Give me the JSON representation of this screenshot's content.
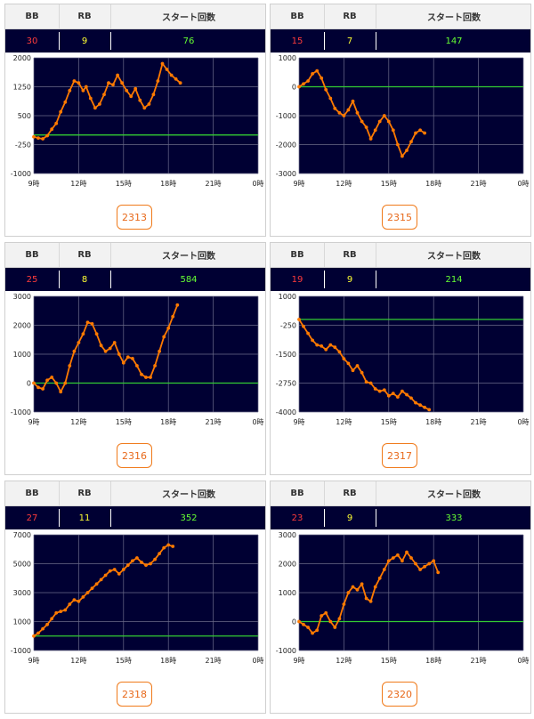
{
  "headers": {
    "bb": "BB",
    "rb": "RB",
    "start": "スタート回数"
  },
  "colors": {
    "bb": "#ff3b3b",
    "rb": "#ffff33",
    "start": "#66ff33",
    "line": "#ff7a00",
    "zero": "#33cc33",
    "plot_bg": "#000033",
    "button": "#f07a1a"
  },
  "machines": [
    {
      "id": "2313",
      "bb": "30",
      "rb": "9",
      "start": "76"
    },
    {
      "id": "2315",
      "bb": "15",
      "rb": "7",
      "start": "147"
    },
    {
      "id": "2316",
      "bb": "25",
      "rb": "8",
      "start": "584"
    },
    {
      "id": "2317",
      "bb": "19",
      "rb": "9",
      "start": "214"
    },
    {
      "id": "2318",
      "bb": "27",
      "rb": "11",
      "start": "352"
    },
    {
      "id": "2320",
      "bb": "23",
      "rb": "9",
      "start": "333"
    }
  ],
  "chart_data": [
    {
      "type": "line",
      "xticks": [
        "9時",
        "12時",
        "15時",
        "18時",
        "21時",
        "0時"
      ],
      "xlim": [
        9,
        24
      ],
      "yticks": [
        "2000",
        "1250",
        "500",
        "-250",
        "-1000"
      ],
      "ylim": [
        -1000,
        2000
      ],
      "baseline": 0,
      "grid": true,
      "points": [
        [
          9,
          -50
        ],
        [
          9.3,
          -80
        ],
        [
          9.6,
          -100
        ],
        [
          9.9,
          -20
        ],
        [
          10.2,
          150
        ],
        [
          10.5,
          300
        ],
        [
          10.8,
          600
        ],
        [
          11.1,
          850
        ],
        [
          11.4,
          1150
        ],
        [
          11.7,
          1400
        ],
        [
          12.0,
          1350
        ],
        [
          12.3,
          1150
        ],
        [
          12.5,
          1250
        ],
        [
          12.8,
          950
        ],
        [
          13.1,
          700
        ],
        [
          13.4,
          800
        ],
        [
          13.7,
          1050
        ],
        [
          14.0,
          1350
        ],
        [
          14.3,
          1300
        ],
        [
          14.6,
          1550
        ],
        [
          14.9,
          1350
        ],
        [
          15.2,
          1150
        ],
        [
          15.5,
          1000
        ],
        [
          15.8,
          1200
        ],
        [
          16.1,
          900
        ],
        [
          16.4,
          700
        ],
        [
          16.7,
          800
        ],
        [
          17.0,
          1050
        ],
        [
          17.3,
          1400
        ],
        [
          17.6,
          1850
        ],
        [
          17.9,
          1700
        ],
        [
          18.2,
          1550
        ],
        [
          18.5,
          1450
        ],
        [
          18.8,
          1350
        ]
      ]
    },
    {
      "type": "line",
      "xticks": [
        "9時",
        "12時",
        "15時",
        "18時",
        "21時",
        "0時"
      ],
      "xlim": [
        9,
        24
      ],
      "yticks": [
        "1000",
        "0",
        "-1000",
        "-2000",
        "-3000"
      ],
      "ylim": [
        -3000,
        1000
      ],
      "baseline": 0,
      "grid": true,
      "points": [
        [
          9,
          0
        ],
        [
          9.3,
          100
        ],
        [
          9.6,
          200
        ],
        [
          9.9,
          450
        ],
        [
          10.2,
          550
        ],
        [
          10.5,
          300
        ],
        [
          10.8,
          -100
        ],
        [
          11.1,
          -400
        ],
        [
          11.4,
          -750
        ],
        [
          11.7,
          -900
        ],
        [
          12.0,
          -1000
        ],
        [
          12.3,
          -800
        ],
        [
          12.6,
          -500
        ],
        [
          12.9,
          -900
        ],
        [
          13.2,
          -1200
        ],
        [
          13.5,
          -1400
        ],
        [
          13.8,
          -1800
        ],
        [
          14.1,
          -1500
        ],
        [
          14.4,
          -1200
        ],
        [
          14.7,
          -1000
        ],
        [
          15.0,
          -1200
        ],
        [
          15.3,
          -1500
        ],
        [
          15.6,
          -2000
        ],
        [
          15.9,
          -2400
        ],
        [
          16.2,
          -2200
        ],
        [
          16.5,
          -1900
        ],
        [
          16.8,
          -1600
        ],
        [
          17.1,
          -1500
        ],
        [
          17.4,
          -1600
        ]
      ]
    },
    {
      "type": "line",
      "xticks": [
        "9時",
        "12時",
        "15時",
        "18時",
        "21時",
        "0時"
      ],
      "xlim": [
        9,
        24
      ],
      "yticks": [
        "3000",
        "2000",
        "1000",
        "0",
        "-1000"
      ],
      "ylim": [
        -1000,
        3000
      ],
      "baseline": 0,
      "grid": true,
      "points": [
        [
          9,
          0
        ],
        [
          9.3,
          -150
        ],
        [
          9.6,
          -200
        ],
        [
          9.9,
          100
        ],
        [
          10.2,
          200
        ],
        [
          10.5,
          0
        ],
        [
          10.8,
          -300
        ],
        [
          11.1,
          0
        ],
        [
          11.4,
          600
        ],
        [
          11.7,
          1100
        ],
        [
          12.0,
          1400
        ],
        [
          12.3,
          1700
        ],
        [
          12.6,
          2100
        ],
        [
          12.9,
          2050
        ],
        [
          13.2,
          1700
        ],
        [
          13.5,
          1300
        ],
        [
          13.8,
          1100
        ],
        [
          14.1,
          1200
        ],
        [
          14.4,
          1400
        ],
        [
          14.7,
          1000
        ],
        [
          15.0,
          700
        ],
        [
          15.3,
          900
        ],
        [
          15.6,
          850
        ],
        [
          15.9,
          600
        ],
        [
          16.2,
          300
        ],
        [
          16.5,
          200
        ],
        [
          16.8,
          200
        ],
        [
          17.1,
          600
        ],
        [
          17.4,
          1100
        ],
        [
          17.7,
          1600
        ],
        [
          18.0,
          1900
        ],
        [
          18.3,
          2300
        ],
        [
          18.6,
          2700
        ]
      ]
    },
    {
      "type": "line",
      "xticks": [
        "9時",
        "12時",
        "15時",
        "18時",
        "21時",
        "0時"
      ],
      "xlim": [
        9,
        24
      ],
      "yticks": [
        "1000",
        "-250",
        "-1500",
        "-2750",
        "-4000"
      ],
      "ylim": [
        -4000,
        1000
      ],
      "baseline": 0,
      "grid": true,
      "points": [
        [
          9,
          0
        ],
        [
          9.3,
          -300
        ],
        [
          9.6,
          -600
        ],
        [
          9.9,
          -900
        ],
        [
          10.2,
          -1100
        ],
        [
          10.5,
          -1150
        ],
        [
          10.8,
          -1300
        ],
        [
          11.1,
          -1100
        ],
        [
          11.4,
          -1200
        ],
        [
          11.7,
          -1400
        ],
        [
          12.0,
          -1700
        ],
        [
          12.3,
          -1900
        ],
        [
          12.6,
          -2200
        ],
        [
          12.9,
          -2000
        ],
        [
          13.2,
          -2300
        ],
        [
          13.5,
          -2700
        ],
        [
          13.8,
          -2750
        ],
        [
          14.1,
          -3000
        ],
        [
          14.4,
          -3100
        ],
        [
          14.7,
          -3050
        ],
        [
          15.0,
          -3300
        ],
        [
          15.3,
          -3200
        ],
        [
          15.6,
          -3350
        ],
        [
          15.9,
          -3100
        ],
        [
          16.2,
          -3250
        ],
        [
          16.5,
          -3400
        ],
        [
          16.8,
          -3600
        ],
        [
          17.1,
          -3700
        ],
        [
          17.4,
          -3800
        ],
        [
          17.7,
          -3900
        ]
      ]
    },
    {
      "type": "line",
      "xticks": [
        "9時",
        "12時",
        "15時",
        "18時",
        "21時",
        "0時"
      ],
      "xlim": [
        9,
        24
      ],
      "yticks": [
        "7000",
        "5000",
        "3000",
        "1000",
        "-1000"
      ],
      "ylim": [
        -1000,
        7000
      ],
      "baseline": 0,
      "grid": true,
      "points": [
        [
          9,
          0
        ],
        [
          9.3,
          200
        ],
        [
          9.6,
          500
        ],
        [
          9.9,
          800
        ],
        [
          10.2,
          1200
        ],
        [
          10.5,
          1600
        ],
        [
          10.8,
          1700
        ],
        [
          11.1,
          1800
        ],
        [
          11.4,
          2200
        ],
        [
          11.7,
          2500
        ],
        [
          12.0,
          2400
        ],
        [
          12.3,
          2700
        ],
        [
          12.6,
          3000
        ],
        [
          12.9,
          3300
        ],
        [
          13.2,
          3600
        ],
        [
          13.5,
          3900
        ],
        [
          13.8,
          4200
        ],
        [
          14.1,
          4500
        ],
        [
          14.4,
          4600
        ],
        [
          14.7,
          4300
        ],
        [
          15.0,
          4600
        ],
        [
          15.3,
          4900
        ],
        [
          15.6,
          5200
        ],
        [
          15.9,
          5400
        ],
        [
          16.2,
          5100
        ],
        [
          16.5,
          4900
        ],
        [
          16.8,
          5000
        ],
        [
          17.1,
          5300
        ],
        [
          17.4,
          5700
        ],
        [
          17.7,
          6100
        ],
        [
          18.0,
          6300
        ],
        [
          18.3,
          6200
        ]
      ]
    },
    {
      "type": "line",
      "xticks": [
        "9時",
        "12時",
        "15時",
        "18時",
        "21時",
        "0時"
      ],
      "xlim": [
        9,
        24
      ],
      "yticks": [
        "3000",
        "2000",
        "1000",
        "0",
        "-1000"
      ],
      "ylim": [
        -1000,
        3000
      ],
      "baseline": 0,
      "grid": true,
      "points": [
        [
          9,
          0
        ],
        [
          9.3,
          -100
        ],
        [
          9.6,
          -200
        ],
        [
          9.9,
          -400
        ],
        [
          10.2,
          -300
        ],
        [
          10.5,
          200
        ],
        [
          10.8,
          300
        ],
        [
          11.1,
          0
        ],
        [
          11.4,
          -200
        ],
        [
          11.7,
          100
        ],
        [
          12.0,
          600
        ],
        [
          12.3,
          1000
        ],
        [
          12.6,
          1200
        ],
        [
          12.9,
          1100
        ],
        [
          13.2,
          1300
        ],
        [
          13.5,
          800
        ],
        [
          13.8,
          700
        ],
        [
          14.1,
          1200
        ],
        [
          14.4,
          1500
        ],
        [
          14.7,
          1800
        ],
        [
          15.0,
          2100
        ],
        [
          15.3,
          2200
        ],
        [
          15.6,
          2300
        ],
        [
          15.9,
          2100
        ],
        [
          16.2,
          2400
        ],
        [
          16.5,
          2200
        ],
        [
          16.8,
          2000
        ],
        [
          17.1,
          1800
        ],
        [
          17.4,
          1900
        ],
        [
          17.7,
          2000
        ],
        [
          18.0,
          2100
        ],
        [
          18.3,
          1700
        ]
      ]
    }
  ]
}
